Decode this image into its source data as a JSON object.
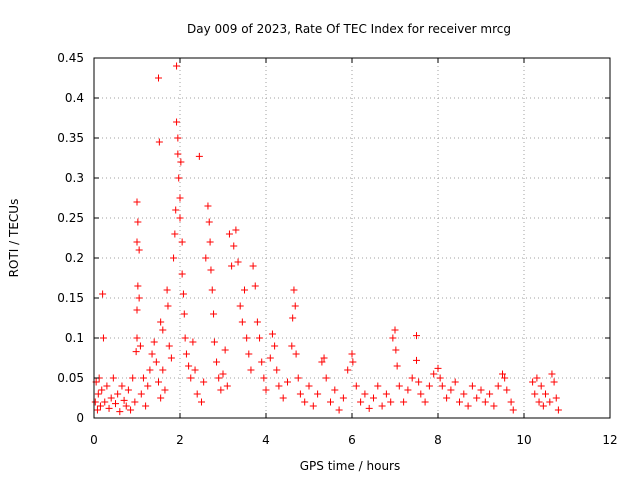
{
  "chart_data": {
    "type": "scatter",
    "title": "Day 009 of 2023, Rate Of TEC Index for receiver mrcg",
    "xlabel": "GPS time / hours",
    "ylabel": "ROTI / TECUs",
    "xlim": [
      0,
      12
    ],
    "ylim": [
      0,
      0.45
    ],
    "grid": true,
    "marker": "+",
    "color": "#ff0000",
    "x_ticks": [
      {
        "value": 0,
        "label": "0"
      },
      {
        "value": 2,
        "label": "2"
      },
      {
        "value": 4,
        "label": "4"
      },
      {
        "value": 6,
        "label": "6"
      },
      {
        "value": 8,
        "label": "8"
      },
      {
        "value": 10,
        "label": "10"
      },
      {
        "value": 12,
        "label": "12"
      }
    ],
    "y_ticks": [
      {
        "value": 0,
        "label": "0"
      },
      {
        "value": 0.05,
        "label": "0.05"
      },
      {
        "value": 0.1,
        "label": "0.1"
      },
      {
        "value": 0.15,
        "label": "0.15"
      },
      {
        "value": 0.2,
        "label": "0.2"
      },
      {
        "value": 0.25,
        "label": "0.25"
      },
      {
        "value": 0.3,
        "label": "0.3"
      },
      {
        "value": 0.35,
        "label": "0.35"
      },
      {
        "value": 0.4,
        "label": "0.4"
      },
      {
        "value": 0.45,
        "label": "0.45"
      }
    ],
    "series": [
      {
        "name": "ROTI",
        "points": [
          [
            0.03,
            0.02
          ],
          [
            0.05,
            0.045
          ],
          [
            0.08,
            0.01
          ],
          [
            0.1,
            0.03
          ],
          [
            0.12,
            0.05
          ],
          [
            0.15,
            0.015
          ],
          [
            0.18,
            0.035
          ],
          [
            0.2,
            0.155
          ],
          [
            0.22,
            0.1
          ],
          [
            0.25,
            0.02
          ],
          [
            0.3,
            0.04
          ],
          [
            0.35,
            0.012
          ],
          [
            0.4,
            0.025
          ],
          [
            0.45,
            0.05
          ],
          [
            0.5,
            0.018
          ],
          [
            0.55,
            0.03
          ],
          [
            0.6,
            0.008
          ],
          [
            0.65,
            0.04
          ],
          [
            0.7,
            0.022
          ],
          [
            0.75,
            0.015
          ],
          [
            0.8,
            0.035
          ],
          [
            0.85,
            0.01
          ],
          [
            0.9,
            0.05
          ],
          [
            0.95,
            0.02
          ],
          [
            0.98,
            0.083
          ],
          [
            1.0,
            0.1
          ],
          [
            1.0,
            0.135
          ],
          [
            1.02,
            0.165
          ],
          [
            1.0,
            0.22
          ],
          [
            1.02,
            0.245
          ],
          [
            1.0,
            0.27
          ],
          [
            1.05,
            0.21
          ],
          [
            1.05,
            0.15
          ],
          [
            1.08,
            0.09
          ],
          [
            1.1,
            0.03
          ],
          [
            1.15,
            0.05
          ],
          [
            1.2,
            0.015
          ],
          [
            1.25,
            0.04
          ],
          [
            1.3,
            0.06
          ],
          [
            1.35,
            0.08
          ],
          [
            1.4,
            0.095
          ],
          [
            1.45,
            0.07
          ],
          [
            1.5,
            0.045
          ],
          [
            1.55,
            0.025
          ],
          [
            1.6,
            0.06
          ],
          [
            1.65,
            0.035
          ],
          [
            1.5,
            0.425
          ],
          [
            1.52,
            0.345
          ],
          [
            1.55,
            0.12
          ],
          [
            1.6,
            0.11
          ],
          [
            1.7,
            0.16
          ],
          [
            1.72,
            0.14
          ],
          [
            1.75,
            0.09
          ],
          [
            1.8,
            0.075
          ],
          [
            1.85,
            0.2
          ],
          [
            1.88,
            0.23
          ],
          [
            1.9,
            0.26
          ],
          [
            1.92,
            0.44
          ],
          [
            1.92,
            0.37
          ],
          [
            1.95,
            0.35
          ],
          [
            1.95,
            0.33
          ],
          [
            1.97,
            0.3
          ],
          [
            2.0,
            0.275
          ],
          [
            2.0,
            0.25
          ],
          [
            2.02,
            0.32
          ],
          [
            2.05,
            0.22
          ],
          [
            2.05,
            0.18
          ],
          [
            2.08,
            0.155
          ],
          [
            2.1,
            0.13
          ],
          [
            2.12,
            0.1
          ],
          [
            2.15,
            0.08
          ],
          [
            2.2,
            0.065
          ],
          [
            2.25,
            0.05
          ],
          [
            2.3,
            0.095
          ],
          [
            2.35,
            0.06
          ],
          [
            2.4,
            0.03
          ],
          [
            2.45,
            0.327
          ],
          [
            2.5,
            0.02
          ],
          [
            2.55,
            0.045
          ],
          [
            2.6,
            0.2
          ],
          [
            2.65,
            0.265
          ],
          [
            2.68,
            0.245
          ],
          [
            2.7,
            0.22
          ],
          [
            2.72,
            0.185
          ],
          [
            2.75,
            0.16
          ],
          [
            2.78,
            0.13
          ],
          [
            2.8,
            0.095
          ],
          [
            2.85,
            0.07
          ],
          [
            2.9,
            0.05
          ],
          [
            2.95,
            0.035
          ],
          [
            3.0,
            0.055
          ],
          [
            3.05,
            0.085
          ],
          [
            3.1,
            0.04
          ],
          [
            3.15,
            0.23
          ],
          [
            3.2,
            0.19
          ],
          [
            3.25,
            0.215
          ],
          [
            3.3,
            0.235
          ],
          [
            3.35,
            0.195
          ],
          [
            3.4,
            0.14
          ],
          [
            3.45,
            0.12
          ],
          [
            3.5,
            0.16
          ],
          [
            3.55,
            0.1
          ],
          [
            3.6,
            0.08
          ],
          [
            3.65,
            0.06
          ],
          [
            3.7,
            0.19
          ],
          [
            3.75,
            0.165
          ],
          [
            3.8,
            0.12
          ],
          [
            3.85,
            0.1
          ],
          [
            3.9,
            0.07
          ],
          [
            3.95,
            0.05
          ],
          [
            4.0,
            0.035
          ],
          [
            4.1,
            0.075
          ],
          [
            4.15,
            0.105
          ],
          [
            4.2,
            0.09
          ],
          [
            4.25,
            0.06
          ],
          [
            4.3,
            0.04
          ],
          [
            4.4,
            0.025
          ],
          [
            4.5,
            0.045
          ],
          [
            4.6,
            0.09
          ],
          [
            4.62,
            0.125
          ],
          [
            4.65,
            0.16
          ],
          [
            4.68,
            0.14
          ],
          [
            4.7,
            0.08
          ],
          [
            4.75,
            0.05
          ],
          [
            4.8,
            0.03
          ],
          [
            4.9,
            0.02
          ],
          [
            5.0,
            0.04
          ],
          [
            5.1,
            0.015
          ],
          [
            5.2,
            0.03
          ],
          [
            5.3,
            0.07
          ],
          [
            5.35,
            0.075
          ],
          [
            5.4,
            0.05
          ],
          [
            5.5,
            0.02
          ],
          [
            5.6,
            0.035
          ],
          [
            5.7,
            0.01
          ],
          [
            5.8,
            0.025
          ],
          [
            5.9,
            0.06
          ],
          [
            6.0,
            0.08
          ],
          [
            6.02,
            0.07
          ],
          [
            6.1,
            0.04
          ],
          [
            6.2,
            0.02
          ],
          [
            6.3,
            0.03
          ],
          [
            6.4,
            0.012
          ],
          [
            6.5,
            0.025
          ],
          [
            6.6,
            0.04
          ],
          [
            6.7,
            0.015
          ],
          [
            6.8,
            0.03
          ],
          [
            6.9,
            0.02
          ],
          [
            6.95,
            0.1
          ],
          [
            7.0,
            0.11
          ],
          [
            7.02,
            0.085
          ],
          [
            7.05,
            0.065
          ],
          [
            7.1,
            0.04
          ],
          [
            7.2,
            0.02
          ],
          [
            7.3,
            0.035
          ],
          [
            7.4,
            0.05
          ],
          [
            7.5,
            0.103
          ],
          [
            7.5,
            0.072
          ],
          [
            7.55,
            0.045
          ],
          [
            7.6,
            0.03
          ],
          [
            7.7,
            0.02
          ],
          [
            7.8,
            0.04
          ],
          [
            7.9,
            0.055
          ],
          [
            8.0,
            0.062
          ],
          [
            8.05,
            0.05
          ],
          [
            8.1,
            0.04
          ],
          [
            8.2,
            0.025
          ],
          [
            8.3,
            0.035
          ],
          [
            8.4,
            0.045
          ],
          [
            8.5,
            0.02
          ],
          [
            8.6,
            0.03
          ],
          [
            8.7,
            0.015
          ],
          [
            8.8,
            0.04
          ],
          [
            8.9,
            0.025
          ],
          [
            9.0,
            0.035
          ],
          [
            9.1,
            0.02
          ],
          [
            9.2,
            0.03
          ],
          [
            9.3,
            0.015
          ],
          [
            9.4,
            0.04
          ],
          [
            9.5,
            0.055
          ],
          [
            9.55,
            0.05
          ],
          [
            9.6,
            0.035
          ],
          [
            9.7,
            0.02
          ],
          [
            9.75,
            0.01
          ],
          [
            10.2,
            0.045
          ],
          [
            10.25,
            0.03
          ],
          [
            10.3,
            0.05
          ],
          [
            10.35,
            0.02
          ],
          [
            10.4,
            0.04
          ],
          [
            10.45,
            0.015
          ],
          [
            10.5,
            0.03
          ],
          [
            10.6,
            0.02
          ],
          [
            10.65,
            0.055
          ],
          [
            10.7,
            0.045
          ],
          [
            10.75,
            0.025
          ],
          [
            10.8,
            0.01
          ]
        ]
      }
    ]
  }
}
